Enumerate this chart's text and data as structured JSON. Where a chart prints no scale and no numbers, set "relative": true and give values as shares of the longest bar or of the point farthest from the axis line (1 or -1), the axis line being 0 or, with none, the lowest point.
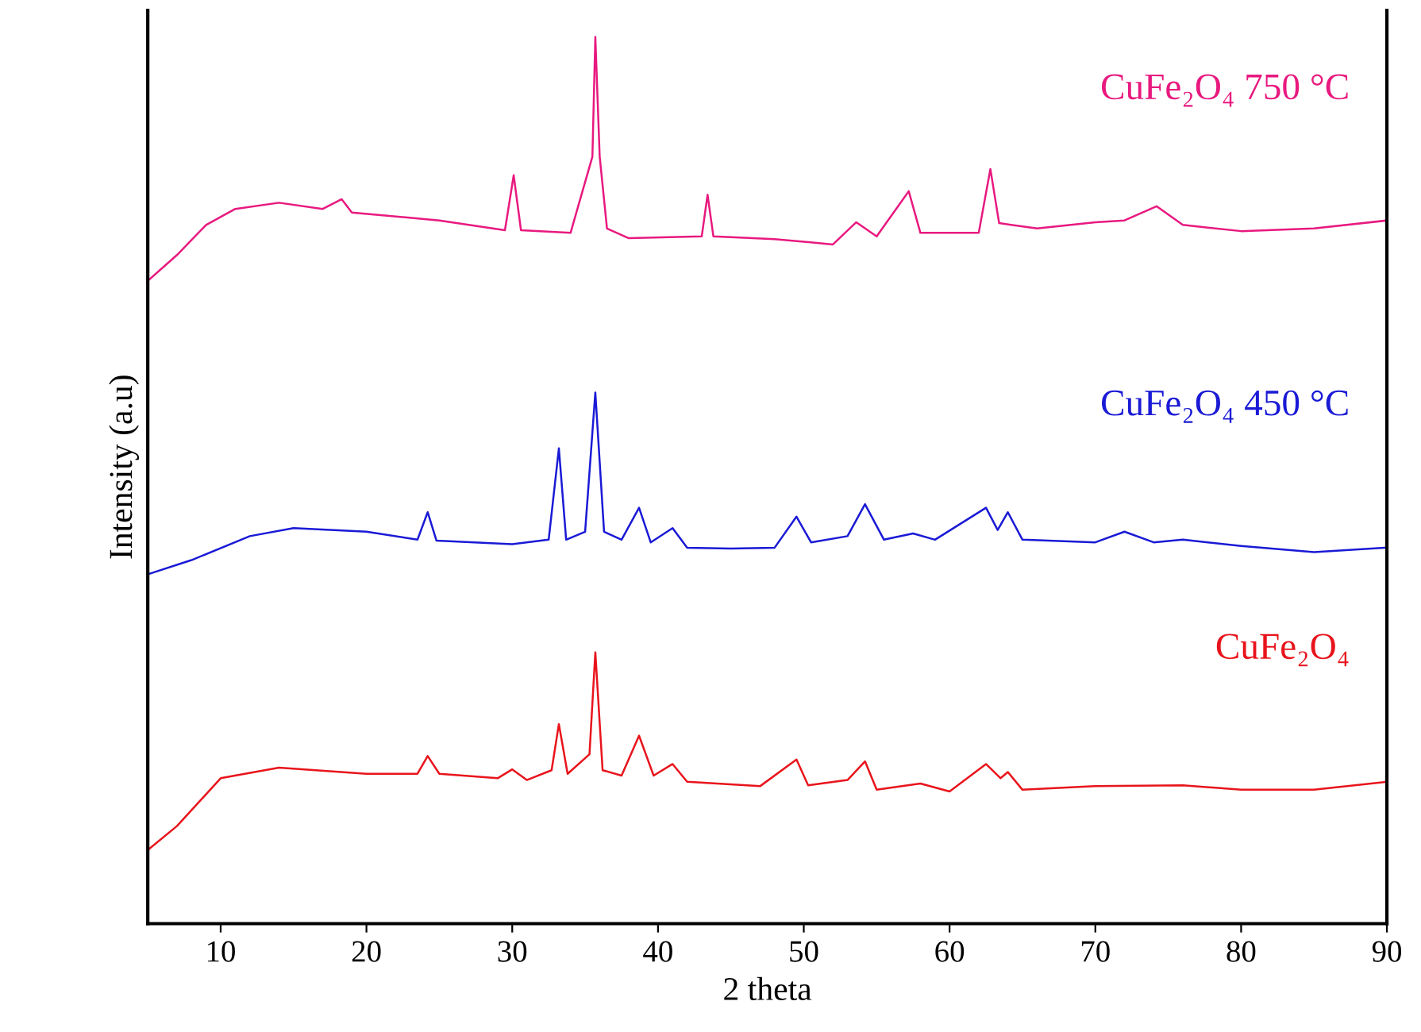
{
  "chart_data": {
    "type": "line",
    "relative": true,
    "xlabel": "2 theta",
    "ylabel": "Intensity (a.u)",
    "xlim": [
      5,
      90
    ],
    "xticks": [
      10,
      20,
      30,
      40,
      50,
      60,
      70,
      80,
      90
    ],
    "grid": false,
    "legend": false,
    "marker": "none",
    "line_style": "solid",
    "series": [
      {
        "name": "CuFe₂O₄ 750 °C",
        "color": "#e8197f",
        "x": [
          5,
          7,
          9,
          11,
          14,
          17,
          18.3,
          19,
          25,
          29.5,
          30.1,
          30.6,
          34,
          35.5,
          35.7,
          36.0,
          36.5,
          38,
          43,
          43.4,
          43.8,
          48,
          52,
          53.6,
          55,
          57.2,
          58,
          62,
          62.8,
          63.4,
          66,
          70,
          72,
          74.2,
          76,
          80,
          85,
          90
        ],
        "values": [
          0.725,
          0.754,
          0.788,
          0.806,
          0.813,
          0.806,
          0.817,
          0.802,
          0.793,
          0.782,
          0.844,
          0.782,
          0.779,
          0.865,
          1.0,
          0.865,
          0.784,
          0.773,
          0.775,
          0.822,
          0.775,
          0.772,
          0.766,
          0.791,
          0.775,
          0.826,
          0.779,
          0.779,
          0.851,
          0.79,
          0.784,
          0.791,
          0.793,
          0.809,
          0.788,
          0.781,
          0.784,
          0.793
        ]
      },
      {
        "name": "CuFe₂O₄ 450 °C",
        "color": "#1a1ad6",
        "x": [
          5,
          8,
          12,
          15,
          20,
          23.5,
          24.2,
          24.8,
          30,
          32.5,
          33.2,
          33.7,
          35,
          35.7,
          36.3,
          37.5,
          38.7,
          39.5,
          41,
          42,
          45,
          48,
          49.5,
          50.5,
          53,
          54.2,
          55.5,
          57.5,
          59,
          62.5,
          63.3,
          64,
          65,
          70,
          72,
          74,
          76,
          80,
          85,
          90
        ],
        "values": [
          0.394,
          0.41,
          0.437,
          0.446,
          0.442,
          0.433,
          0.464,
          0.432,
          0.428,
          0.433,
          0.536,
          0.433,
          0.442,
          0.599,
          0.442,
          0.433,
          0.469,
          0.43,
          0.446,
          0.424,
          0.423,
          0.424,
          0.459,
          0.43,
          0.437,
          0.473,
          0.433,
          0.44,
          0.433,
          0.469,
          0.444,
          0.464,
          0.433,
          0.43,
          0.442,
          0.43,
          0.433,
          0.426,
          0.419,
          0.424
        ]
      },
      {
        "name": "CuFe₂O₄",
        "color": "#e8141c",
        "x": [
          5,
          7,
          10,
          14,
          20,
          23.5,
          24.2,
          25,
          29,
          30,
          31,
          32.7,
          33.2,
          33.8,
          35.3,
          35.7,
          36.2,
          37.5,
          38.7,
          39.7,
          41,
          42,
          47,
          49.5,
          50.3,
          53,
          54.2,
          55,
          58,
          60,
          62.5,
          63.5,
          64,
          65,
          70,
          76,
          80,
          85,
          90
        ],
        "values": [
          0.083,
          0.11,
          0.164,
          0.176,
          0.169,
          0.169,
          0.189,
          0.169,
          0.164,
          0.174,
          0.162,
          0.173,
          0.225,
          0.169,
          0.191,
          0.306,
          0.173,
          0.167,
          0.212,
          0.167,
          0.18,
          0.16,
          0.155,
          0.185,
          0.156,
          0.162,
          0.183,
          0.151,
          0.158,
          0.149,
          0.18,
          0.164,
          0.171,
          0.151,
          0.155,
          0.156,
          0.151,
          0.151,
          0.16
        ]
      }
    ]
  }
}
